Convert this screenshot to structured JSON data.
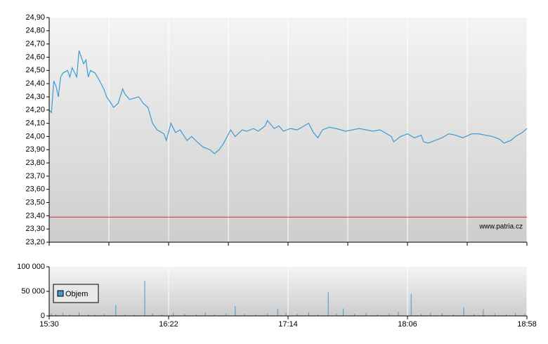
{
  "chart_data": [
    {
      "type": "line",
      "xlim": [
        0,
        208
      ],
      "xticks": [
        {
          "value": 0,
          "label": "15:30"
        },
        {
          "value": 52,
          "label": "16:22"
        },
        {
          "value": 104,
          "label": "17:14"
        },
        {
          "value": 156,
          "label": "18:06"
        },
        {
          "value": 208,
          "label": "18:58"
        }
      ],
      "ylim": [
        23.2,
        24.9
      ],
      "yticks": [
        {
          "value": 23.2,
          "label": "23,20"
        },
        {
          "value": 23.3,
          "label": "23,30"
        },
        {
          "value": 23.4,
          "label": "23,40"
        },
        {
          "value": 23.5,
          "label": "23,50"
        },
        {
          "value": 23.6,
          "label": "23,60"
        },
        {
          "value": 23.7,
          "label": "23,70"
        },
        {
          "value": 23.8,
          "label": "23,80"
        },
        {
          "value": 23.9,
          "label": "23,90"
        },
        {
          "value": 24.0,
          "label": "24,00"
        },
        {
          "value": 24.1,
          "label": "24,10"
        },
        {
          "value": 24.2,
          "label": "24,20"
        },
        {
          "value": 24.3,
          "label": "24,30"
        },
        {
          "value": 24.4,
          "label": "24,40"
        },
        {
          "value": 24.5,
          "label": "24,50"
        },
        {
          "value": 24.6,
          "label": "24,60"
        },
        {
          "value": 24.7,
          "label": "24,70"
        },
        {
          "value": 24.8,
          "label": "24,80"
        },
        {
          "value": 24.9,
          "label": "24,90"
        }
      ],
      "reference_line": {
        "value": 23.39,
        "color": "#cc3333"
      },
      "annotation": "www.patria.cz",
      "grid": true,
      "series": [
        {
          "color": "#3d9bd0",
          "x": [
            0,
            1,
            2,
            3,
            4,
            5,
            6,
            8,
            9,
            10,
            12,
            13,
            15,
            16,
            17,
            18,
            20,
            22,
            24,
            25,
            27,
            28,
            30,
            32,
            33,
            35,
            39,
            41,
            43,
            45,
            47,
            50,
            51,
            53,
            55,
            57,
            60,
            62,
            65,
            67,
            70,
            72,
            74,
            76,
            79,
            81,
            84,
            86,
            89,
            91,
            94,
            95,
            98,
            100,
            102,
            105,
            108,
            111,
            113,
            115,
            117,
            119,
            122,
            125,
            129,
            132,
            135,
            138,
            141,
            144,
            147,
            149,
            150,
            153,
            156,
            159,
            162,
            163,
            165,
            168,
            171,
            174,
            177,
            180,
            184,
            187,
            190,
            193,
            196,
            198,
            201,
            203,
            206,
            208
          ],
          "values": [
            24.2,
            24.18,
            24.42,
            24.38,
            24.3,
            24.45,
            24.48,
            24.5,
            24.45,
            24.52,
            24.45,
            24.65,
            24.55,
            24.58,
            24.45,
            24.5,
            24.48,
            24.42,
            24.35,
            24.3,
            24.25,
            24.22,
            24.25,
            24.36,
            24.32,
            24.28,
            24.3,
            24.25,
            24.22,
            24.1,
            24.05,
            24.02,
            23.97,
            24.1,
            24.03,
            24.05,
            23.97,
            24.0,
            23.95,
            23.92,
            23.9,
            23.87,
            23.9,
            23.95,
            24.05,
            24.0,
            24.05,
            24.04,
            24.06,
            24.04,
            24.08,
            24.12,
            24.06,
            24.08,
            24.04,
            24.06,
            24.05,
            24.08,
            24.1,
            24.03,
            23.99,
            24.05,
            24.07,
            24.06,
            24.04,
            24.05,
            24.06,
            24.05,
            24.04,
            24.05,
            24.02,
            24.0,
            23.96,
            24.0,
            24.02,
            23.99,
            24.01,
            23.96,
            23.95,
            23.97,
            23.99,
            24.02,
            24.01,
            23.99,
            24.02,
            24.02,
            24.01,
            24.0,
            23.98,
            23.95,
            23.97,
            24.0,
            24.03,
            24.06
          ]
        }
      ]
    },
    {
      "type": "bar",
      "xlim": [
        0,
        208
      ],
      "ylim": [
        0,
        100000
      ],
      "yticks": [
        0,
        {
          "value": 50000,
          "label": "50 000"
        },
        {
          "value": 100000,
          "label": "100 000"
        }
      ],
      "legend": "top-left",
      "series": [
        {
          "name": "Objem",
          "color": "#3d9bd0",
          "x": [
            1,
            3,
            6,
            9,
            13,
            17,
            20,
            24,
            29,
            33,
            37,
            41.6,
            45,
            49,
            54,
            59,
            64,
            68,
            72,
            77,
            81,
            85,
            90,
            95,
            99.5,
            103,
            108,
            113,
            117,
            121.5,
            125,
            128,
            133,
            138,
            143,
            148,
            152,
            157.6,
            162,
            166,
            171,
            176,
            180.5,
            185,
            189,
            194,
            199,
            203,
            207
          ],
          "values": [
            5000,
            4000,
            6000,
            3000,
            7000,
            3000,
            2000,
            4000,
            22000,
            3000,
            2000,
            72000,
            5000,
            3000,
            6000,
            4000,
            3000,
            7000,
            3000,
            5000,
            20000,
            4000,
            3000,
            5000,
            15000,
            6000,
            4000,
            7000,
            3000,
            48000,
            5000,
            15000,
            4000,
            6000,
            3000,
            5000,
            8000,
            45000,
            4000,
            6000,
            5000,
            3000,
            17000,
            4000,
            13000,
            5000,
            3000,
            6000,
            4000
          ]
        }
      ]
    }
  ]
}
